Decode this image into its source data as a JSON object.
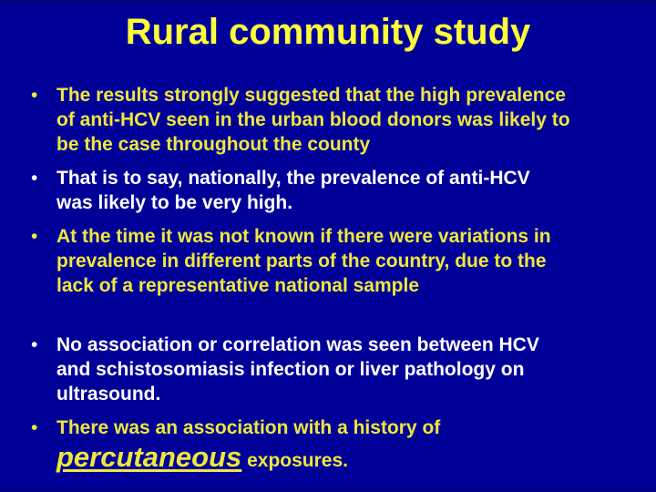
{
  "slide": {
    "title": "Rural community study",
    "bullet_char": "•",
    "colors": {
      "background": "#000099",
      "title": "#FFFF38",
      "yellow_text": "#EFE73B",
      "white_text": "#FFFFFF"
    },
    "bullets": [
      {
        "color": "yellow",
        "lines": [
          "The results strongly suggested that the high prevalence",
          "of anti-HCV seen in the urban blood donors was likely to",
          "be the case throughout the county"
        ]
      },
      {
        "color": "white",
        "lines": [
          "That is to say, nationally, the prevalence of anti-HCV",
          "was likely to be very high."
        ]
      },
      {
        "color": "yellow",
        "lines": [
          "At the time it was not known if there were variations in",
          "prevalence in different parts of the country, due to the",
          "lack of a representative national sample"
        ]
      },
      {
        "color": "white",
        "lines": [
          "No association or correlation was seen between HCV",
          "and schistosomiasis infection or liver pathology on",
          "ultrasound."
        ]
      },
      {
        "color": "yellow",
        "lines": [
          "There was an association with a history of"
        ],
        "emphasis_word": "percutaneous",
        "after_emphasis": " exposures."
      }
    ]
  }
}
